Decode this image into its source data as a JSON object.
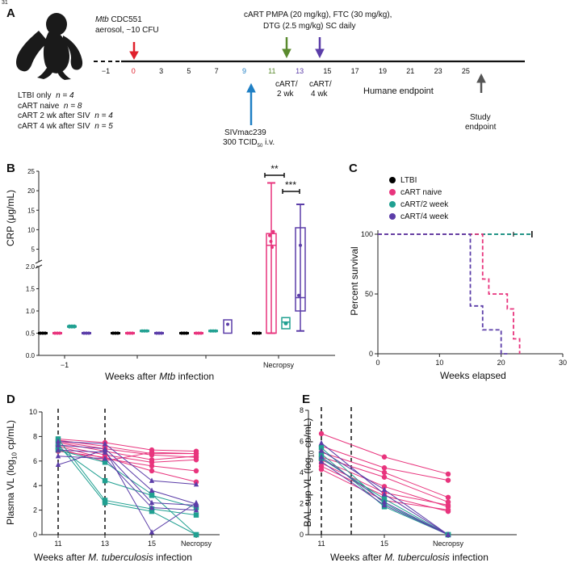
{
  "page_number": "31",
  "panelA": {
    "label": "A",
    "animal": "macaque-silhouette",
    "timeline_ticks": [
      "−1",
      "0",
      "3",
      "5",
      "7",
      "9",
      "11",
      "13",
      "15",
      "17",
      "19",
      "21",
      "23",
      "25"
    ],
    "infection": {
      "italic": "Mtb",
      "strain": " CDC551",
      "line2": "aerosol, ~10 CFU",
      "color": "#e0202c"
    },
    "cart": {
      "line1": "cART PMPA (20 mg/kg), FTC (30 mg/kg),",
      "line2": "DTG (2.5 mg/kg) SC daily"
    },
    "cart2": {
      "l1": "cART/",
      "l2": "2 wk",
      "color": "#5a8a2e"
    },
    "cart4": {
      "l1": "cART/",
      "l2": "4 wk",
      "color": "#5b3da8"
    },
    "siv": {
      "l1": "SIVmac239",
      "l2a": "300 TCID",
      "l2sub": "50",
      "l2b": " i.v.",
      "color": "#1f7fc4"
    },
    "humane": "Humane endpoint",
    "study": {
      "l1": "Study",
      "l2": "endpoint"
    },
    "groups": [
      {
        "name": "LTBI only",
        "n": "n = 4"
      },
      {
        "name": "cART naive",
        "n": "n = 8"
      },
      {
        "name": "cART 2 wk after SIV",
        "n": "n = 4"
      },
      {
        "name": "cART 4 wk after SIV",
        "n": "n = 5"
      }
    ]
  },
  "colors": {
    "ltbi": "#000000",
    "naive": "#e8347d",
    "cart2": "#20a091",
    "cart4": "#5b3da8"
  },
  "chart_data": [
    {
      "panel": "B",
      "type": "box",
      "ylabel": "CRP (μg/mL)",
      "xlabel_pre": "Weeks after ",
      "xlabel_italic": "Mtb",
      "xlabel_post": " infection",
      "categories": [
        "−1",
        "",
        "",
        "Necropsy"
      ],
      "y_low_ticks": [
        "0.0",
        "0.5",
        "1.0",
        "1.5",
        "2.0"
      ],
      "y_high_ticks": [
        "2.0",
        "5",
        "10",
        "15",
        "20",
        "25"
      ],
      "significance": [
        "**",
        "***"
      ],
      "series": [
        {
          "name": "LTBI",
          "values": [
            0.5,
            0.5,
            0.5,
            0.5
          ]
        },
        {
          "name": "cART naive",
          "medians": [
            0.5,
            0.5,
            0.5,
            6.0
          ],
          "max_necropsy": 22
        },
        {
          "name": "cART/2 week",
          "medians": [
            0.65,
            0.55,
            0.55,
            0.75
          ]
        },
        {
          "name": "cART/4 week",
          "medians": [
            0.5,
            0.5,
            0.7,
            1.3
          ],
          "max_necropsy": 16.5
        }
      ]
    },
    {
      "panel": "C",
      "type": "line",
      "ylabel": "Percent survival",
      "xlabel": "Weeks elapsed",
      "xticks": [
        "0",
        "10",
        "20",
        "30"
      ],
      "yticks": [
        "0",
        "50",
        "100"
      ],
      "xlim": [
        0,
        30
      ],
      "ylim": [
        0,
        100
      ],
      "legend": [
        "LTBI",
        "cART naive",
        "cART/2 week",
        "cART/4 week"
      ],
      "series": [
        {
          "name": "LTBI",
          "x": [
            0,
            25
          ],
          "y": [
            100,
            100
          ]
        },
        {
          "name": "cART/2 week",
          "x": [
            0,
            25
          ],
          "y": [
            100,
            100
          ]
        },
        {
          "name": "cART naive",
          "x": [
            0,
            17,
            17,
            18,
            18,
            21,
            21,
            22,
            22,
            23,
            23
          ],
          "y": [
            100,
            100,
            62.5,
            62.5,
            50,
            50,
            37.5,
            37.5,
            12.5,
            12.5,
            0
          ]
        },
        {
          "name": "cART/4 week",
          "x": [
            0,
            15,
            15,
            17,
            17,
            20,
            20,
            21,
            21
          ],
          "y": [
            100,
            100,
            40,
            40,
            20,
            20,
            0,
            0,
            0
          ]
        }
      ]
    },
    {
      "panel": "D",
      "type": "line",
      "ylabel_pre": "Plasma VL (log",
      "ylabel_sub": "10",
      "ylabel_post": " cp/mL)",
      "xlabel_pre": "Weeks after ",
      "xlabel_italic": "M. tuberculosis",
      "xlabel_post": " infection",
      "categories": [
        "11",
        "13",
        "15",
        "Necropsy"
      ],
      "yticks": [
        "0",
        "2",
        "4",
        "6",
        "8",
        "10"
      ],
      "ylim": [
        0,
        10
      ],
      "series": [
        {
          "group": "naive",
          "values": [
            7.8,
            7.5,
            6.9,
            6.8
          ]
        },
        {
          "group": "naive",
          "values": [
            7.7,
            7.2,
            6.6,
            6.6
          ]
        },
        {
          "group": "naive",
          "values": [
            7.6,
            7.0,
            6.5,
            6.3
          ]
        },
        {
          "group": "naive",
          "values": [
            7.5,
            6.8,
            6.1,
            6.4
          ]
        },
        {
          "group": "naive",
          "values": [
            7.3,
            6.5,
            5.9,
            6.1
          ]
        },
        {
          "group": "naive",
          "values": [
            7.2,
            6.2,
            5.6,
            5.2
          ]
        },
        {
          "group": "naive",
          "values": [
            7.0,
            6.0,
            6.7,
            6.6
          ]
        },
        {
          "group": "naive",
          "values": [
            6.8,
            6.3,
            5.2,
            4.3
          ]
        },
        {
          "group": "cart2",
          "values": [
            7.8,
            2.8,
            2.1,
            1.6
          ]
        },
        {
          "group": "cart2",
          "values": [
            7.4,
            2.6,
            1.9,
            0.0
          ]
        },
        {
          "group": "cart2",
          "values": [
            7.1,
            4.4,
            3.2,
            2.2
          ]
        },
        {
          "group": "cart2",
          "values": [
            6.9,
            5.9,
            3.3,
            0.0
          ]
        },
        {
          "group": "cart4",
          "values": [
            7.6,
            7.4,
            4.4,
            4.1
          ]
        },
        {
          "group": "cart4",
          "values": [
            7.3,
            7.0,
            3.6,
            2.5
          ]
        },
        {
          "group": "cart4",
          "values": [
            6.9,
            6.7,
            2.6,
            2.4
          ]
        },
        {
          "group": "cart4",
          "values": [
            6.4,
            6.2,
            2.2,
            2.0
          ]
        },
        {
          "group": "cart4",
          "values": [
            5.7,
            6.9,
            0.2,
            2.6
          ]
        }
      ]
    },
    {
      "panel": "E",
      "type": "line",
      "ylabel_pre": "BAL sup VL (log",
      "ylabel_sub": "10",
      "ylabel_post": " cp/mL)",
      "xlabel_pre": "Weeks after ",
      "xlabel_italic": "M. tuberculosis",
      "xlabel_post": " infection",
      "categories": [
        "11",
        "15",
        "Necropsy"
      ],
      "yticks": [
        "0",
        "2",
        "4",
        "6",
        "8"
      ],
      "ylim": [
        0,
        8
      ],
      "series": [
        {
          "group": "naive",
          "values": [
            6.5,
            5.0,
            3.9
          ]
        },
        {
          "group": "naive",
          "values": [
            5.7,
            4.3,
            3.5
          ]
        },
        {
          "group": "naive",
          "values": [
            5.3,
            4.0,
            2.4
          ]
        },
        {
          "group": "naive",
          "values": [
            5.0,
            3.7,
            2.1
          ]
        },
        {
          "group": "naive",
          "values": [
            4.8,
            3.1,
            1.8
          ]
        },
        {
          "group": "naive",
          "values": [
            4.6,
            2.7,
            1.9
          ]
        },
        {
          "group": "naive",
          "values": [
            4.4,
            2.5,
            1.5
          ]
        },
        {
          "group": "naive",
          "values": [
            4.2,
            2.2,
            1.6
          ]
        },
        {
          "group": "cart2",
          "values": [
            5.6,
            2.0,
            0.0
          ]
        },
        {
          "group": "cart2",
          "values": [
            5.2,
            1.8,
            0.0
          ]
        },
        {
          "group": "cart2",
          "values": [
            4.9,
            2.3,
            0.0
          ]
        },
        {
          "group": "cart4",
          "values": [
            5.9,
            2.6,
            0.0
          ]
        },
        {
          "group": "cart4",
          "values": [
            5.4,
            2.9,
            0.0
          ]
        },
        {
          "group": "cart4",
          "values": [
            5.0,
            2.1,
            0.0
          ]
        },
        {
          "group": "cart4",
          "values": [
            4.7,
            1.9,
            0.0
          ]
        }
      ]
    }
  ]
}
